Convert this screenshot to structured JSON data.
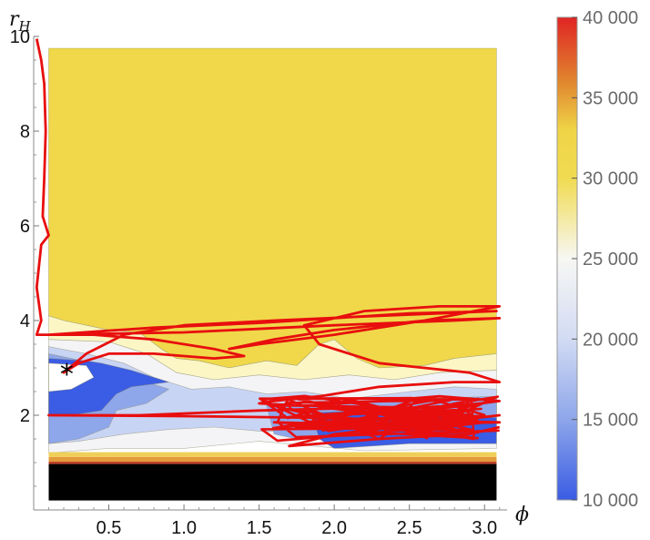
{
  "chart_data": {
    "type": "heatmap",
    "title": "",
    "xlabel": "ϕ",
    "ylabel_main": "r",
    "ylabel_sub": "H",
    "xlim": [
      0.0,
      3.15
    ],
    "ylim": [
      0.0,
      10.0
    ],
    "xticks": [
      {
        "v": 0.5,
        "label": "0.5"
      },
      {
        "v": 1.0,
        "label": "1.0"
      },
      {
        "v": 1.5,
        "label": "1.5"
      },
      {
        "v": 2.0,
        "label": "2.0"
      },
      {
        "v": 2.5,
        "label": "2.5"
      },
      {
        "v": 3.0,
        "label": "3.0"
      }
    ],
    "yticks": [
      {
        "v": 2,
        "label": "2"
      },
      {
        "v": 4,
        "label": "4"
      },
      {
        "v": 6,
        "label": "6"
      },
      {
        "v": 8,
        "label": "8"
      },
      {
        "v": 10,
        "label": "10"
      }
    ],
    "colorbar": {
      "min": 10000,
      "max": 40000,
      "ticks": [
        {
          "v": 10000,
          "label": "10 000"
        },
        {
          "v": 15000,
          "label": "15 000"
        },
        {
          "v": 20000,
          "label": "20 000"
        },
        {
          "v": 25000,
          "label": "25 000"
        },
        {
          "v": 30000,
          "label": "30 000"
        },
        {
          "v": 35000,
          "label": "35 000"
        },
        {
          "v": 40000,
          "label": "40 000"
        }
      ],
      "stops": [
        {
          "v": 10000,
          "color": "#3a5ce4"
        },
        {
          "v": 15000,
          "color": "#8ea6ea"
        },
        {
          "v": 20000,
          "color": "#d2dbf3"
        },
        {
          "v": 25000,
          "color": "#f7f7f3"
        },
        {
          "v": 30000,
          "color": "#f0db50"
        },
        {
          "v": 33000,
          "color": "#efd447"
        },
        {
          "v": 36000,
          "color": "#e0862e"
        },
        {
          "v": 40000,
          "color": "#e02424"
        }
      ]
    },
    "regions": [
      {
        "name": "high-value-region",
        "value": 31000,
        "color": "#f0d84a",
        "poly": [
          [
            0.1,
            9.75
          ],
          [
            3.08,
            9.75
          ],
          [
            3.08,
            3.3
          ],
          [
            2.8,
            3.2
          ],
          [
            2.6,
            3.05
          ],
          [
            2.3,
            3.0
          ],
          [
            2.15,
            3.2
          ],
          [
            2.0,
            3.6
          ],
          [
            1.9,
            3.5
          ],
          [
            1.75,
            3.05
          ],
          [
            1.55,
            3.15
          ],
          [
            1.3,
            3.0
          ],
          [
            1.1,
            3.15
          ],
          [
            0.95,
            3.2
          ],
          [
            0.85,
            3.4
          ],
          [
            0.7,
            3.75
          ],
          [
            0.5,
            3.8
          ],
          [
            0.35,
            3.9
          ],
          [
            0.2,
            4.0
          ],
          [
            0.1,
            4.1
          ]
        ]
      },
      {
        "name": "pale-yellow-band",
        "value": 28000,
        "color": "#fbf6c4",
        "poly": [
          [
            0.1,
            4.1
          ],
          [
            0.2,
            4.0
          ],
          [
            0.35,
            3.9
          ],
          [
            0.5,
            3.8
          ],
          [
            0.7,
            3.75
          ],
          [
            0.85,
            3.4
          ],
          [
            0.95,
            3.2
          ],
          [
            1.1,
            3.15
          ],
          [
            1.3,
            3.0
          ],
          [
            1.55,
            3.15
          ],
          [
            1.75,
            3.05
          ],
          [
            1.9,
            3.5
          ],
          [
            2.0,
            3.6
          ],
          [
            2.15,
            3.2
          ],
          [
            2.3,
            3.0
          ],
          [
            2.6,
            3.05
          ],
          [
            2.8,
            3.2
          ],
          [
            3.08,
            3.3
          ],
          [
            3.08,
            2.95
          ],
          [
            2.7,
            2.9
          ],
          [
            2.4,
            2.75
          ],
          [
            2.1,
            2.85
          ],
          [
            1.8,
            2.75
          ],
          [
            1.5,
            2.85
          ],
          [
            1.2,
            2.75
          ],
          [
            0.95,
            2.9
          ],
          [
            0.75,
            3.3
          ],
          [
            0.5,
            3.55
          ],
          [
            0.1,
            3.6
          ]
        ]
      },
      {
        "name": "white-mid-region",
        "value": 24000,
        "color": "#f4f4f7",
        "poly": [
          [
            0.1,
            3.6
          ],
          [
            0.5,
            3.55
          ],
          [
            0.75,
            3.3
          ],
          [
            0.95,
            2.9
          ],
          [
            1.2,
            2.75
          ],
          [
            1.5,
            2.85
          ],
          [
            1.8,
            2.75
          ],
          [
            2.1,
            2.85
          ],
          [
            2.4,
            2.75
          ],
          [
            2.7,
            2.9
          ],
          [
            3.08,
            2.95
          ],
          [
            3.08,
            1.3
          ],
          [
            2.2,
            1.25
          ],
          [
            1.5,
            1.45
          ],
          [
            1.0,
            1.3
          ],
          [
            0.5,
            1.3
          ],
          [
            0.1,
            1.2
          ]
        ]
      },
      {
        "name": "light-blue-region",
        "value": 18000,
        "color": "#c8d4f4",
        "poly": [
          [
            0.1,
            3.45
          ],
          [
            0.35,
            3.3
          ],
          [
            0.6,
            3.1
          ],
          [
            0.8,
            2.8
          ],
          [
            1.05,
            2.55
          ],
          [
            1.3,
            2.6
          ],
          [
            1.55,
            2.45
          ],
          [
            1.8,
            2.5
          ],
          [
            2.1,
            2.35
          ],
          [
            2.5,
            2.5
          ],
          [
            2.8,
            2.6
          ],
          [
            3.08,
            2.55
          ],
          [
            3.08,
            2.0
          ],
          [
            2.6,
            1.7
          ],
          [
            2.2,
            1.7
          ],
          [
            1.9,
            1.75
          ],
          [
            1.55,
            1.65
          ],
          [
            1.2,
            1.75
          ],
          [
            0.9,
            1.7
          ],
          [
            0.6,
            1.6
          ],
          [
            0.3,
            1.45
          ],
          [
            0.1,
            1.4
          ]
        ]
      },
      {
        "name": "mid-blue-region",
        "value": 14000,
        "color": "#8ea6ea",
        "poly": [
          [
            0.1,
            3.3
          ],
          [
            0.4,
            3.1
          ],
          [
            0.6,
            2.85
          ],
          [
            0.9,
            2.55
          ],
          [
            0.75,
            2.25
          ],
          [
            0.55,
            2.1
          ],
          [
            0.5,
            1.75
          ],
          [
            0.3,
            1.5
          ],
          [
            0.1,
            1.4
          ]
        ]
      },
      {
        "name": "mid-blue-patch-right",
        "value": 14000,
        "color": "#8ea6ea",
        "poly": [
          [
            1.55,
            2.2
          ],
          [
            2.1,
            2.25
          ],
          [
            2.6,
            2.35
          ],
          [
            3.08,
            2.4
          ],
          [
            3.08,
            1.6
          ],
          [
            2.5,
            1.55
          ],
          [
            2.0,
            1.55
          ],
          [
            1.75,
            1.5
          ],
          [
            1.6,
            1.6
          ]
        ]
      },
      {
        "name": "dark-blue-region",
        "value": 11000,
        "color": "#3b5ce4",
        "poly": [
          [
            0.1,
            3.2
          ],
          [
            0.35,
            3.15
          ],
          [
            0.45,
            3.1
          ],
          [
            0.65,
            2.95
          ],
          [
            0.9,
            2.7
          ],
          [
            0.65,
            2.6
          ],
          [
            0.55,
            2.45
          ],
          [
            0.45,
            2.1
          ],
          [
            0.25,
            2.0
          ],
          [
            0.1,
            2.0
          ]
        ]
      },
      {
        "name": "dark-blue-band-right",
        "value": 11000,
        "color": "#3b5ce4",
        "poly": [
          [
            1.85,
            2.05
          ],
          [
            2.2,
            2.1
          ],
          [
            2.6,
            2.0
          ],
          [
            3.08,
            1.95
          ],
          [
            3.08,
            1.4
          ],
          [
            2.5,
            1.4
          ],
          [
            2.0,
            1.3
          ],
          [
            1.9,
            1.5
          ]
        ]
      },
      {
        "name": "gap-white-left",
        "value": 24000,
        "color": "#ffffff",
        "poly": [
          [
            0.1,
            3.1
          ],
          [
            0.35,
            3.05
          ],
          [
            0.4,
            2.8
          ],
          [
            0.25,
            2.55
          ],
          [
            0.1,
            2.5
          ]
        ]
      }
    ],
    "bands": [
      {
        "name": "band-orange",
        "value": 36000,
        "color": "#e39a3a",
        "y0": 1.02,
        "y1": 1.12
      },
      {
        "name": "band-gold",
        "value": 33000,
        "color": "#efcf57",
        "y0": 1.12,
        "y1": 1.22
      },
      {
        "name": "band-dark-red",
        "value": 38000,
        "color": "#c0412a",
        "y0": 0.97,
        "y1": 1.02
      },
      {
        "name": "band-black",
        "value": 0,
        "color": "#000000",
        "y0": 0.2,
        "y1": 0.97
      }
    ],
    "domain": {
      "x0": 0.1,
      "x1": 3.08,
      "y0": 0.2,
      "y1": 9.75
    },
    "trajectory_color": "#e80e0e",
    "trajectory": [
      [
        0.02,
        9.95
      ],
      [
        0.05,
        9.5
      ],
      [
        0.07,
        9.0
      ],
      [
        0.08,
        8.0
      ],
      [
        0.07,
        7.0
      ],
      [
        0.06,
        6.2
      ],
      [
        0.1,
        5.8
      ],
      [
        0.05,
        5.6
      ],
      [
        0.02,
        4.7
      ],
      [
        0.05,
        4.0
      ],
      [
        0.02,
        3.7
      ],
      [
        0.4,
        3.7
      ],
      [
        0.8,
        3.6
      ],
      [
        1.2,
        3.4
      ],
      [
        1.4,
        3.25
      ],
      [
        1.2,
        3.2
      ],
      [
        0.8,
        3.3
      ],
      [
        0.5,
        3.3
      ],
      [
        0.3,
        3.1
      ],
      [
        0.2,
        2.9
      ],
      [
        0.35,
        3.3
      ],
      [
        0.6,
        3.7
      ],
      [
        1.0,
        3.9
      ],
      [
        1.6,
        4.0
      ],
      [
        2.3,
        4.1
      ],
      [
        3.08,
        4.2
      ],
      [
        2.5,
        4.15
      ],
      [
        1.5,
        3.95
      ],
      [
        0.8,
        3.85
      ],
      [
        0.1,
        3.7
      ],
      [
        1.0,
        3.75
      ],
      [
        2.0,
        3.9
      ],
      [
        2.8,
        4.0
      ],
      [
        3.1,
        4.05
      ],
      [
        2.6,
        4.0
      ],
      [
        2.0,
        3.8
      ],
      [
        1.6,
        3.6
      ],
      [
        1.3,
        3.4
      ],
      [
        1.5,
        3.5
      ],
      [
        2.0,
        3.7
      ],
      [
        2.6,
        4.0
      ],
      [
        3.1,
        4.3
      ],
      [
        2.7,
        4.3
      ],
      [
        2.2,
        4.2
      ],
      [
        1.8,
        3.9
      ],
      [
        1.9,
        3.5
      ],
      [
        2.1,
        3.3
      ],
      [
        2.3,
        3.1
      ],
      [
        2.6,
        3.0
      ],
      [
        2.9,
        2.9
      ],
      [
        3.1,
        2.7
      ],
      [
        2.8,
        2.7
      ],
      [
        2.3,
        2.6
      ],
      [
        1.9,
        2.4
      ],
      [
        1.6,
        2.3
      ],
      [
        1.5,
        2.25
      ],
      [
        1.8,
        2.2
      ],
      [
        2.3,
        2.3
      ],
      [
        2.7,
        2.4
      ],
      [
        3.1,
        2.3
      ],
      [
        2.6,
        2.1
      ],
      [
        2.1,
        2.15
      ],
      [
        1.5,
        2.1
      ],
      [
        0.7,
        2.0
      ],
      [
        0.1,
        2.0
      ],
      [
        1.0,
        1.98
      ],
      [
        1.8,
        1.95
      ],
      [
        2.5,
        1.9
      ],
      [
        3.1,
        1.85
      ],
      [
        2.2,
        1.8
      ],
      [
        1.6,
        1.85
      ],
      [
        2.4,
        1.75
      ],
      [
        3.1,
        2.0
      ],
      [
        2.0,
        1.6
      ],
      [
        1.7,
        1.35
      ],
      [
        2.3,
        1.5
      ],
      [
        2.9,
        1.6
      ],
      [
        3.1,
        1.75
      ]
    ],
    "trajectory_scribble": {
      "x0": 1.5,
      "x1": 3.1,
      "y0": 1.3,
      "y1": 2.6,
      "count": 80
    },
    "marker": {
      "symbol": "*",
      "x": 0.22,
      "y": 2.92
    }
  }
}
